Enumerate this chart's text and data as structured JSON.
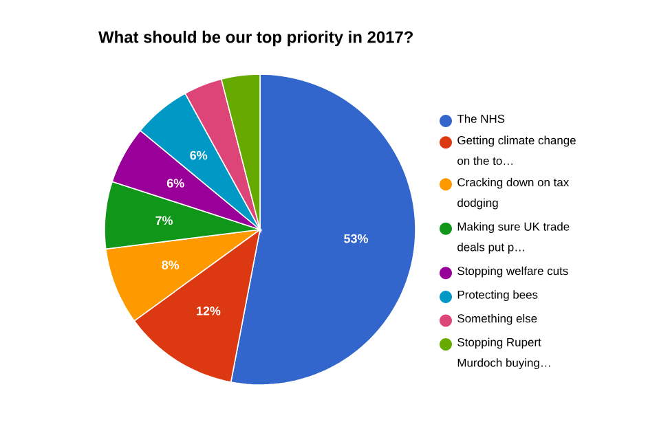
{
  "chart_data": {
    "type": "pie",
    "title": "What should be our top priority in 2017?",
    "categories": [
      "The NHS",
      "Getting climate change on the to…",
      "Cracking down on tax dodging",
      "Making sure UK trade deals put p…",
      "Stopping welfare cuts",
      "Protecting bees",
      "Something else",
      "Stopping Rupert Murdoch buying…"
    ],
    "values": [
      53,
      12,
      8,
      7,
      6,
      6,
      4,
      4
    ],
    "value_labels": [
      "53%",
      "12%",
      "8%",
      "7%",
      "6%",
      "6%",
      null,
      null
    ],
    "colors": [
      "#3366cc",
      "#dc3912",
      "#ff9900",
      "#109618",
      "#990099",
      "#0099c6",
      "#dd4477",
      "#66aa00"
    ],
    "legend": "right"
  }
}
